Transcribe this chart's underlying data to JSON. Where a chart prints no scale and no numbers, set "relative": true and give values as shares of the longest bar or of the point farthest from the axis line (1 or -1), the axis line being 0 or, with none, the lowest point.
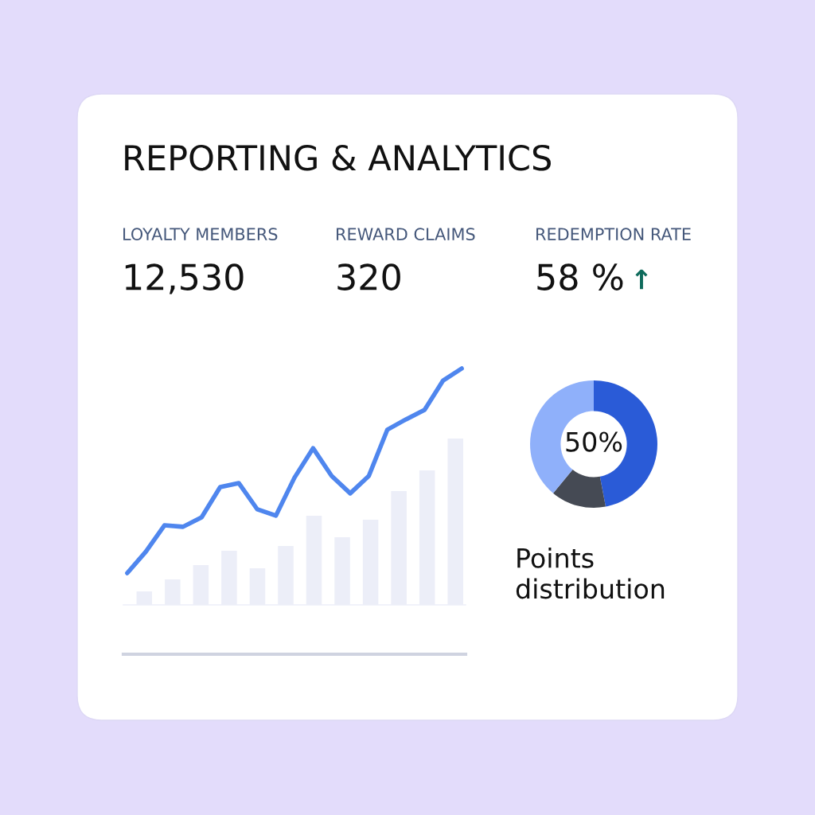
{
  "chart_data": [
    {
      "type": "other",
      "title": "REPORTING & ANALYTICS",
      "annotations": [
        "LOYALTY MEMBERS",
        "12,530",
        "REWARD CLAIMS",
        "320",
        "REDEMPTION RATE",
        "58 %",
        "↑"
      ]
    },
    {
      "type": "bar",
      "relative": true,
      "categories": [
        null,
        null,
        null,
        null,
        null,
        null,
        null,
        null,
        null,
        null,
        null,
        null
      ],
      "series": [
        {
          "color": "#eceef8",
          "values": [
            0.081,
            0.153,
            0.239,
            0.325,
            0.22,
            0.354,
            0.536,
            0.407,
            0.512,
            0.684,
            0.809,
            1.0
          ]
        }
      ]
    },
    {
      "type": "line",
      "relative": true,
      "categories": [
        null,
        null,
        null,
        null,
        null,
        null,
        null,
        null,
        null,
        null,
        null,
        null,
        null,
        null,
        null,
        null,
        null,
        null,
        null
      ],
      "series": [
        {
          "color": "#4f86ee",
          "values": [
            0.284,
            0.359,
            0.451,
            0.446,
            0.479,
            0.585,
            0.599,
            0.507,
            0.485,
            0.618,
            0.721,
            0.624,
            0.563,
            0.624,
            0.786,
            0.822,
            0.855,
            0.958,
            1.0
          ]
        }
      ]
    },
    {
      "type": "donut",
      "title": "Points\ndistribution",
      "categories": [
        null,
        null,
        null
      ],
      "values": [
        47,
        14,
        39
      ],
      "colors": [
        "#2a5bd7",
        "#454a54",
        "#8fb0fa"
      ],
      "annotations": [
        "50%"
      ]
    }
  ]
}
